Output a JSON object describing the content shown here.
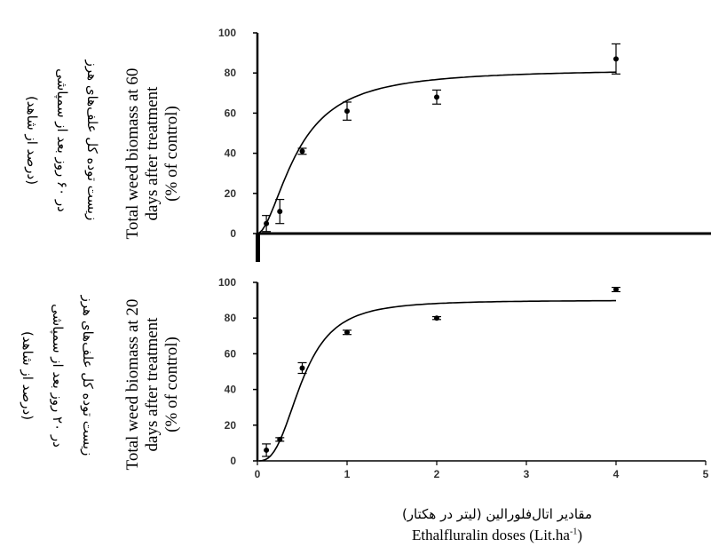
{
  "chart_data": [
    {
      "type": "scatter",
      "panel": "top",
      "ylabel_en": [
        "Total weed biomass at 60",
        "days after treatment",
        "(% of control)"
      ],
      "ylabel_fa": [
        "زیست توده کل علف‌های هرز",
        "در ۶۰ روز بعد از سمپاشی",
        "(درصد از شاهد)"
      ],
      "x": [
        0.1,
        0.25,
        0.5,
        1,
        2,
        4
      ],
      "y": [
        5,
        11,
        41,
        61,
        68,
        87
      ],
      "error": [
        4,
        6,
        1.5,
        4.5,
        3.5,
        7.5
      ],
      "fit_curve": "sigmoid",
      "xlim": [
        0,
        5
      ],
      "ylim": [
        0,
        100
      ],
      "yticks": [
        "0",
        "20",
        "40",
        "60",
        "80",
        "100"
      ]
    },
    {
      "type": "scatter",
      "panel": "bottom",
      "ylabel_en": [
        "Total weed biomass at 20",
        "days after treatment",
        "(% of control)"
      ],
      "ylabel_fa": [
        "زیست توده کل علف‌های هرز",
        "در ۲۰ روز بعد از سمپاشی",
        "(درصد از شاهد)"
      ],
      "x": [
        0.1,
        0.25,
        0.5,
        1,
        2,
        4
      ],
      "y": [
        6,
        12,
        52,
        72,
        80,
        96
      ],
      "error": [
        3.5,
        1,
        3,
        1.2,
        0.8,
        1.2
      ],
      "fit_curve": "sigmoid",
      "xlim": [
        0,
        5
      ],
      "ylim": [
        0,
        100
      ],
      "xticks": [
        "0",
        "1",
        "2",
        "3",
        "4",
        "5"
      ],
      "yticks": [
        "0",
        "20",
        "40",
        "60",
        "80",
        "100"
      ]
    }
  ],
  "xlabel_fa": "مقادیر اتال‌فلورالین (لیتر در هکتار)",
  "xlabel_en_main": "Ethalfluralin doses (Lit.ha",
  "xlabel_en_sup": "-1",
  "xlabel_en_close": ")"
}
